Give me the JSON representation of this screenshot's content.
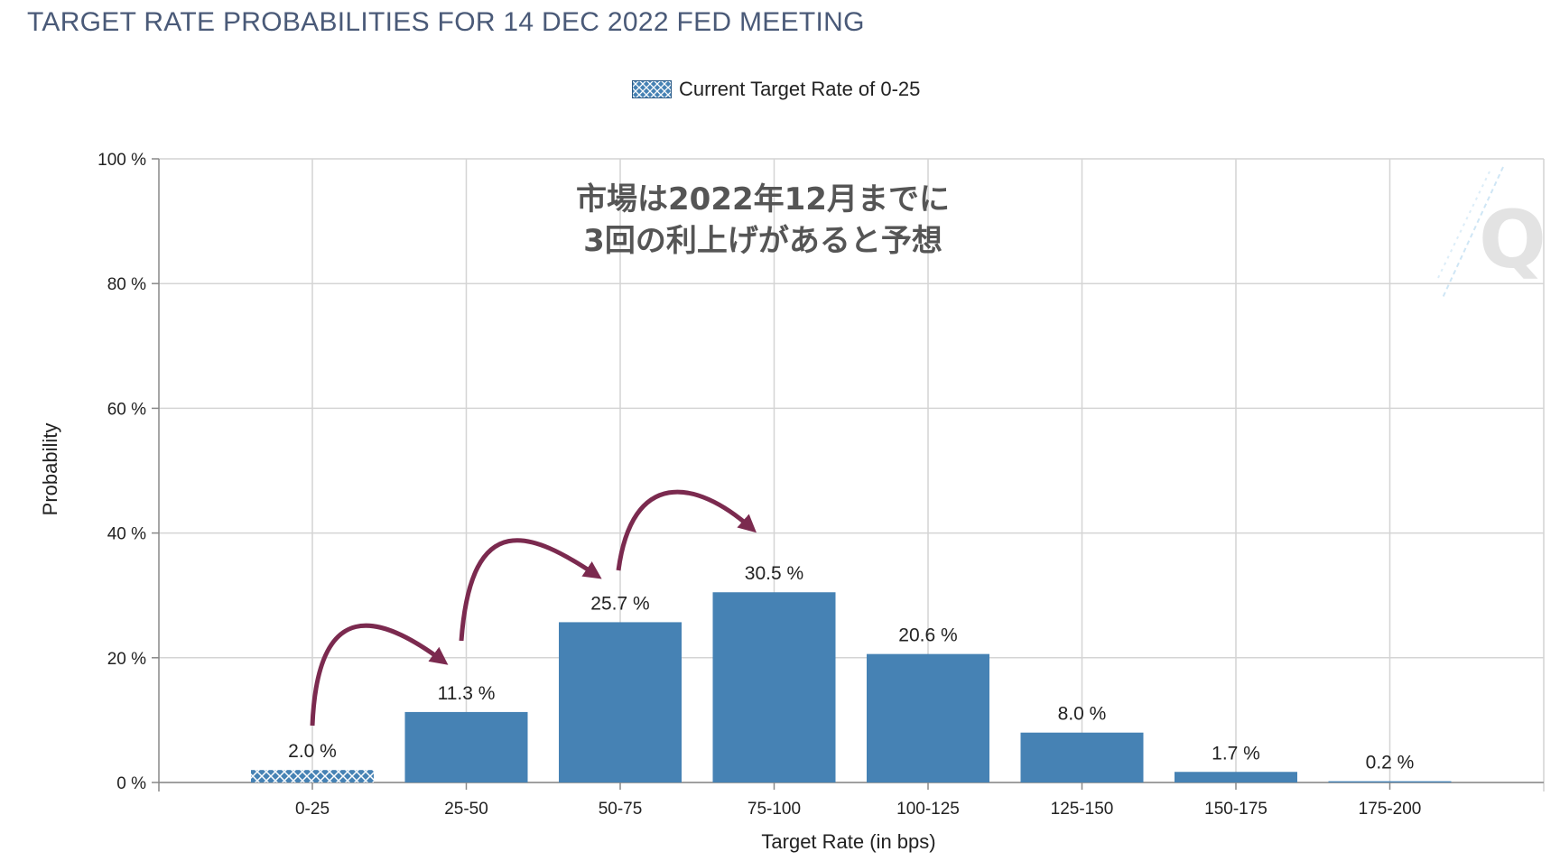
{
  "title": "TARGET RATE PROBABILITIES FOR 14 DEC 2022 FED MEETING",
  "legend": {
    "label": "Current Target Rate of 0-25",
    "swatch_icon": "hatched-blue-swatch"
  },
  "annotation": {
    "line1": "市場は2022年12月までに",
    "line2": "3回の利上げがあると予想"
  },
  "watermark": "Q",
  "colors": {
    "bar": "#4682b4",
    "arrow": "#7b2a4f",
    "grid": "#d4d4d4",
    "title": "#4a5a78"
  },
  "chart_data": {
    "type": "bar",
    "categories": [
      "0-25",
      "25-50",
      "50-75",
      "75-100",
      "100-125",
      "125-150",
      "150-175",
      "175-200"
    ],
    "values": [
      2.0,
      11.3,
      25.7,
      30.5,
      20.6,
      8.0,
      1.7,
      0.2
    ],
    "value_labels": [
      "2.0 %",
      "11.3 %",
      "25.7 %",
      "30.5 %",
      "20.6 %",
      "8.0 %",
      "1.7 %",
      "0.2 %"
    ],
    "highlighted_category": "0-25",
    "xlabel": "Target Rate (in bps)",
    "ylabel": "Probability",
    "ylim": [
      0,
      100
    ],
    "yticks": [
      0,
      20,
      40,
      60,
      80,
      100
    ],
    "ytick_labels": [
      "0 %",
      "20 %",
      "40 %",
      "60 %",
      "80 %",
      "100 %"
    ],
    "grid": true,
    "legend_position": "top-center"
  }
}
